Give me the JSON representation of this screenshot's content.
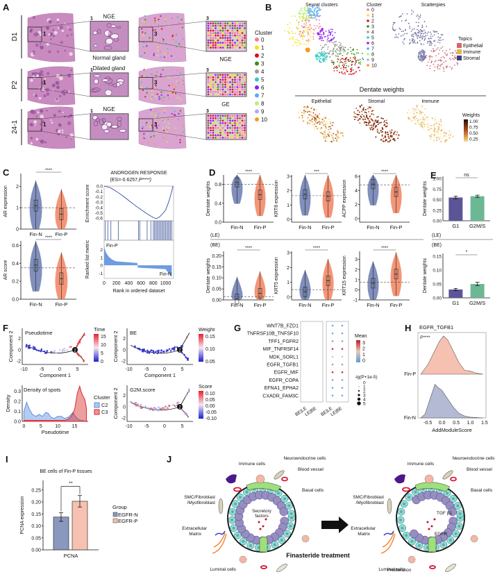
{
  "figure": {
    "panel_labels": [
      "A",
      "B",
      "C",
      "D",
      "E",
      "F",
      "G",
      "H",
      "I",
      "J"
    ]
  },
  "panelA": {
    "rows": [
      {
        "sample": "D1",
        "box_left": "1",
        "box_right": "3",
        "callouts_left": [
          "NGE",
          "Normal gland"
        ],
        "callouts_right": [
          "NGE"
        ]
      },
      {
        "sample": "P2",
        "box_left": "1",
        "box_right": "3",
        "callouts_left": [
          "Dilated gland"
        ],
        "callouts_right": [
          "GE"
        ]
      },
      {
        "sample": "24-1",
        "box_left": "1",
        "box_right": "3",
        "callouts_left": [
          "NGE"
        ],
        "callouts_right": []
      }
    ],
    "legend_title": "Cluster",
    "legend": [
      {
        "label": "0",
        "color": "#f07f9a"
      },
      {
        "label": "1",
        "color": "#f5e211"
      },
      {
        "label": "2",
        "color": "#d9101f"
      },
      {
        "label": "3",
        "color": "#3d8c1e"
      },
      {
        "label": "4",
        "color": "#9b9b9b"
      },
      {
        "label": "5",
        "color": "#2ec9c0"
      },
      {
        "label": "6",
        "color": "#8a1ff0"
      },
      {
        "label": "7",
        "color": "#5aaaf5"
      },
      {
        "label": "8",
        "color": "#b7f07a"
      },
      {
        "label": "9",
        "color": "#b5a8f2"
      },
      {
        "label": "10",
        "color": "#f59a1f"
      }
    ]
  },
  "panelB": {
    "umap1_title": "Seurat clusters",
    "legend_title": "Cluster",
    "umap2_title": "Scatterpies",
    "topics_title": "Topics",
    "topics": [
      {
        "label": "Epithelial",
        "color": "#d9646b"
      },
      {
        "label": "Immune",
        "color": "#e6b44a"
      },
      {
        "label": "Stromal",
        "color": "#3b3f80"
      }
    ],
    "dentate_title": "Dentate weights",
    "weights_maps": [
      "Epithelial",
      "Stromal",
      "Immune"
    ],
    "weights_legend_title": "Weights",
    "weights_ticks": [
      "1.00",
      "0.75",
      "0.50",
      "0.25"
    ]
  },
  "chart_data": [
    {
      "id": "C-AR-expression",
      "type": "violin",
      "categories": [
        "Fin-N",
        "Fin-P"
      ],
      "ylabel": "AR expression",
      "yticks": [
        "0",
        "1",
        "2"
      ],
      "ylim": [
        0,
        2.6
      ],
      "reference_line": 1.0,
      "medians": [
        1.1,
        0.7
      ],
      "significance": "****",
      "colors": [
        "#6b7bb0",
        "#f2835f"
      ]
    },
    {
      "id": "C-AR-score",
      "type": "violin",
      "categories": [
        "Fin-N",
        "Fin-P"
      ],
      "ylabel": "AR score",
      "yticks": [
        "0.0",
        "0.2",
        "0.4",
        "0.6"
      ],
      "ylim": [
        0,
        0.65
      ],
      "reference_line": 0.35,
      "medians": [
        0.38,
        0.23
      ],
      "significance": "****",
      "colors": [
        "#6b7bb0",
        "#f2835f"
      ]
    },
    {
      "id": "C-GSEA",
      "type": "line",
      "title": "ANDROGEN RESPONSE",
      "subtitle": "(ES=-0.6257, P****)",
      "es_ylabel": "Enrichment score",
      "es_yticks": [
        "0.0",
        "-0.1",
        "-0.2",
        "-0.3",
        "-0.4",
        "-0.5",
        "-0.6"
      ],
      "es_curve": {
        "x": [
          0,
          100,
          200,
          300,
          400,
          500,
          600,
          700,
          800,
          850,
          900,
          950,
          1000,
          1050,
          1100,
          1120
        ],
        "y": [
          0,
          -0.03,
          -0.1,
          -0.18,
          -0.27,
          -0.36,
          -0.44,
          -0.52,
          -0.59,
          -0.61,
          -0.58,
          -0.52,
          -0.45,
          -0.3,
          -0.1,
          0
        ]
      },
      "hits": [
        20,
        60,
        110,
        230,
        560,
        580,
        700,
        760,
        800,
        820,
        840,
        860,
        880,
        900,
        920,
        940,
        960,
        980,
        1000,
        1020,
        1040,
        1060,
        1080,
        1100
      ],
      "metric_ylabel": "Ranked list metric",
      "metric_yticks": [
        "2",
        "1",
        "0",
        "-1"
      ],
      "metric_labels": [
        "Fin-P",
        "Fin-N"
      ],
      "xlabel": "Rank in ordered dataset",
      "xticks": [
        "0",
        "200",
        "400",
        "600",
        "800",
        "1000"
      ],
      "xlim": [
        0,
        1130
      ]
    },
    {
      "id": "D-LE",
      "type": "violin",
      "group": "(LE)",
      "categories": [
        "Fin-N",
        "Fin-P"
      ],
      "panels": [
        {
          "ylabel": "Dentate weights",
          "yticks": [
            "0.0",
            "0.4",
            "0.8"
          ],
          "ylim": [
            0,
            1.0
          ],
          "reference_line": 0.8,
          "medians": [
            0.84,
            0.58
          ],
          "significance": "****"
        },
        {
          "ylabel": "KRT8 expression",
          "yticks": [
            "0",
            "1",
            "2",
            "3"
          ],
          "ylim": [
            -0.2,
            3.1
          ],
          "reference_line": 1.65,
          "medians": [
            1.75,
            1.6
          ],
          "significance": "***"
        },
        {
          "ylabel": "ACPP expression",
          "yticks": [
            "0",
            "2",
            "4",
            "6"
          ],
          "ylim": [
            -0.5,
            6.2
          ],
          "reference_line": 4.8,
          "medians": [
            4.9,
            3.8
          ],
          "significance": "****"
        }
      ]
    },
    {
      "id": "D-BE",
      "type": "violin",
      "group": "(BE)",
      "categories": [
        "Fin-N",
        "Fin-P"
      ],
      "panels": [
        {
          "ylabel": "Dentate weights",
          "yticks": [
            "0.00",
            "0.05",
            "0.10",
            "0.15",
            "0.20"
          ],
          "ylim": [
            0,
            0.22
          ],
          "reference_line": 0.015,
          "medians": [
            0.005,
            0.03
          ],
          "significance": "****"
        },
        {
          "ylabel": "KRT5 expression",
          "yticks": [
            "0",
            "1",
            "2",
            "3"
          ],
          "ylim": [
            -0.2,
            3.1
          ],
          "reference_line": 0.5,
          "medians": [
            0.35,
            1.1
          ],
          "significance": "****"
        },
        {
          "ylabel": "KRT15 expression",
          "yticks": [
            "-1",
            "0",
            "1",
            "2",
            "3"
          ],
          "ylim": [
            -1,
            3.8
          ],
          "reference_line": 0.75,
          "medians": [
            0.65,
            1.55
          ],
          "significance": "****"
        }
      ]
    },
    {
      "id": "E-LE",
      "type": "bar",
      "group": "(LE)",
      "categories": [
        "G1",
        "G2M/S"
      ],
      "values": [
        0.55,
        0.58
      ],
      "errors": [
        0.03,
        0.025
      ],
      "ylabel": "Dentate weights",
      "yticks": [
        "0.00",
        "0.25",
        "0.50",
        "0.75",
        "1.00"
      ],
      "ylim": [
        0,
        1.05
      ],
      "significance": "ns",
      "colors": [
        "#5b5597",
        "#6db894"
      ]
    },
    {
      "id": "E-BE",
      "type": "bar",
      "group": "(BE)",
      "categories": [
        "G1",
        "G2M/S"
      ],
      "values": [
        0.03,
        0.05
      ],
      "errors": [
        0.004,
        0.006
      ],
      "ylabel": "Dentate weights",
      "yticks": [
        "0.00",
        "0.05",
        "0.10",
        "0.15"
      ],
      "ylim": [
        0,
        0.16
      ],
      "significance": "*",
      "colors": [
        "#5b5597",
        "#6db894"
      ]
    },
    {
      "id": "F-trajectories",
      "type": "scatter",
      "xlabel": "Component 1",
      "ylabel": "Component 2",
      "xticks": [
        "-10",
        "-5",
        "0",
        "5"
      ],
      "yticks": [
        "-2",
        "0",
        "2"
      ],
      "xlim": [
        -10.5,
        8
      ],
      "ylim": [
        -2.6,
        3.8
      ],
      "branch_node": "2",
      "plots": [
        {
          "title": "Pseudotime",
          "legend_title": "Time",
          "legend_ticks": [
            "15",
            "10",
            "5",
            "0"
          ]
        },
        {
          "title": "BE",
          "legend_title": "Weight",
          "legend_ticks": [
            "0.15",
            "0.10",
            "0.05"
          ]
        },
        {
          "title": "G2M.score",
          "legend_title": "Score",
          "legend_ticks": [
            "0.10",
            "0.05",
            "0.00",
            "-0.05",
            "-0.10"
          ]
        }
      ]
    },
    {
      "id": "F-density",
      "type": "area",
      "title": "Density of spots",
      "xlabel": "Pseudotime",
      "ylabel": "Density",
      "xticks": [
        "0",
        "5",
        "10",
        "15"
      ],
      "yticks": [
        "0.0",
        "0.1",
        "0.2",
        "0.3"
      ],
      "xlim": [
        -0.5,
        19
      ],
      "ylim": [
        0,
        0.36
      ],
      "legend_title": "Cluster",
      "series": [
        {
          "name": "C2",
          "color": "#5b8fe0",
          "x": [
            0,
            0.8,
            1.5,
            2.5,
            3.5,
            4.5,
            5.5,
            6.5,
            7.2,
            8,
            9,
            10,
            11,
            12,
            13,
            14,
            14.5,
            15,
            16,
            17,
            18,
            18.5
          ],
          "y": [
            0.1,
            0.19,
            0.13,
            0.07,
            0.05,
            0.07,
            0.05,
            0.09,
            0.08,
            0.04,
            0.03,
            0.05,
            0.05,
            0.03,
            0.04,
            0.07,
            0.09,
            0.06,
            0.02,
            0.01,
            0.005,
            0.0
          ]
        },
        {
          "name": "C3",
          "color": "#d82a2a",
          "x": [
            0,
            5,
            10,
            12,
            13,
            14,
            15,
            15.8,
            16.5,
            17,
            17.5,
            18,
            18.5
          ],
          "y": [
            0.01,
            0.01,
            0.01,
            0.01,
            0.02,
            0.05,
            0.12,
            0.28,
            0.35,
            0.29,
            0.25,
            0.22,
            0.13
          ]
        }
      ]
    },
    {
      "id": "G-dotplot",
      "type": "scatter",
      "rows": [
        "WNT7B_FZD1",
        "TNFRSF10B_TNFSF10",
        "TFF1_FGFR2",
        "MIF_TNFRSF14",
        "MDK_SORL1",
        "EGFR_TGFB1",
        "EGFR_MIF",
        "EGFR_COPA",
        "EFNA1_EPHA2",
        "CXADR_FAM3C"
      ],
      "columns": [
        "BE|LE",
        "LE|BE",
        "BE|LE",
        "LE|BE"
      ],
      "mean_legend_title": "Mean",
      "mean_ticks": [
        "3",
        "2",
        "1",
        "0"
      ],
      "size_legend_title": "-lg(P+1e-5)",
      "size_ticks": [
        "0",
        "1",
        "2",
        "3",
        "4",
        "5"
      ],
      "mean": [
        [
          0.5,
          0.1,
          0.5,
          0.5
        ],
        [
          1.1,
          0.3,
          0.3,
          0.2
        ],
        [
          0.5,
          1.2,
          0.5,
          0.5
        ],
        [
          2.5,
          3.5,
          3.2,
          3.0
        ],
        [
          1.5,
          1.8,
          1.6,
          1.6
        ],
        [
          0.1,
          0.5,
          0.5,
          0.5
        ],
        [
          1.2,
          2.6,
          3.3,
          3.3
        ],
        [
          0.6,
          0.2,
          0.6,
          0.3
        ],
        [
          0.4,
          0.7,
          0.4,
          0.7
        ],
        [
          0.6,
          0.7,
          0.7,
          1.1
        ]
      ],
      "size": [
        [
          0,
          4
        ],
        [
          3,
          1
        ],
        [
          0,
          3
        ],
        [
          4,
          5
        ],
        [
          3,
          3
        ],
        [
          1,
          0
        ],
        [
          4,
          4
        ],
        [
          3,
          1
        ],
        [
          4,
          4
        ],
        [
          4,
          4
        ],
        [
          0,
          0
        ],
        [
          3,
          2
        ],
        [
          0,
          0
        ],
        [
          5,
          5
        ],
        [
          3,
          3
        ],
        [
          0,
          0
        ],
        [
          5,
          5
        ],
        [
          3,
          1
        ],
        [
          4,
          4
        ],
        [
          4,
          4
        ]
      ]
    },
    {
      "id": "H-ridge",
      "type": "area",
      "title": "EGFR_TGFB1",
      "annotation": "P****",
      "xlabel": "AddModuleScore",
      "xticks": [
        "-0.5",
        "0.0",
        "0.5",
        "1.0",
        "1.5"
      ],
      "xlim": [
        -0.85,
        1.55
      ],
      "categories": [
        "Fin-P",
        "Fin-N"
      ],
      "series": [
        {
          "name": "Fin-P",
          "color": "#f4b6a3",
          "x": [
            -0.75,
            -0.5,
            -0.3,
            -0.1,
            0.05,
            0.2,
            0.4,
            0.6,
            0.8,
            1.0,
            1.2,
            1.45
          ],
          "y": [
            0,
            0.25,
            0.55,
            0.85,
            1.0,
            0.9,
            0.6,
            0.3,
            0.1,
            0.08,
            0.03,
            0
          ]
        },
        {
          "name": "Fin-N",
          "color": "#a7aecb",
          "x": [
            -0.75,
            -0.6,
            -0.4,
            -0.25,
            -0.15,
            0.0,
            0.2,
            0.4,
            0.6,
            0.8,
            1.0,
            1.45
          ],
          "y": [
            0,
            0.1,
            0.55,
            0.88,
            0.8,
            0.72,
            0.5,
            0.28,
            0.12,
            0.05,
            0.02,
            0
          ]
        }
      ]
    },
    {
      "id": "I-bar",
      "type": "bar",
      "title": "BE cells of Fin-P tissues",
      "categories": [
        "PCNA"
      ],
      "series": [
        {
          "name": "EGFR-N",
          "value": 0.137,
          "error": 0.018,
          "color": "#8a98bd"
        },
        {
          "name": "EGFR-P",
          "value": 0.203,
          "error": 0.024,
          "color": "#f6c1b1"
        }
      ],
      "ylabel": "PCNA expression",
      "yticks": [
        "0.00",
        "0.05",
        "0.10",
        "0.15",
        "0.20",
        "0.25"
      ],
      "ylim": [
        0,
        0.29
      ],
      "significance": "**",
      "legend_title": "Group"
    }
  ],
  "panelJ": {
    "left_labels": [
      "Immune cells",
      "Neuroendocrine cells",
      "Blood vessel",
      "Basal cells",
      "SMC/Fibroblast",
      "/Myofibroblast",
      "Extracellular",
      "Matrix",
      "Luminal cells"
    ],
    "left_center": [
      "Secretory",
      "factors"
    ],
    "arrow_label": "Finasteride treatment",
    "right_labels": [
      "Immune cells",
      "Neuroendocrine cells",
      "Blood vessel",
      "Basal cells",
      "SMC/Fibroblast",
      "/Myofibroblast",
      "Extracellular",
      "Matrix",
      "Luminal cells",
      "Proliferation"
    ],
    "right_center": [
      "TGF β1",
      "EGFR"
    ]
  }
}
